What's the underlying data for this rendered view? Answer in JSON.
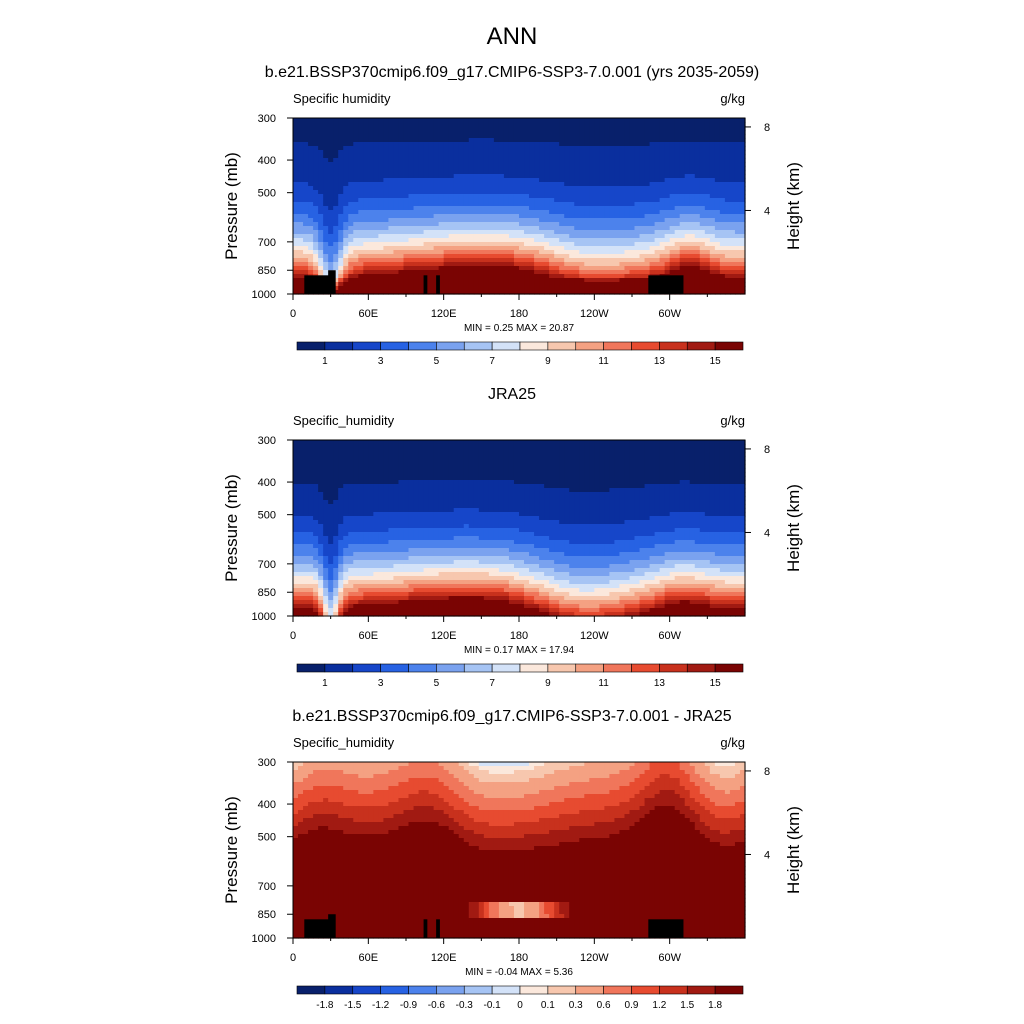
{
  "figure": {
    "title": "ANN",
    "colors": {
      "sequential": [
        "#08206b",
        "#0a2f9e",
        "#1646c9",
        "#2762e3",
        "#4c82ec",
        "#7aa2ef",
        "#a6c4f4",
        "#d3e2f8",
        "#fbe8dc",
        "#f7c7ae",
        "#f4a182",
        "#f0765b",
        "#e74b30",
        "#c8311d",
        "#a11a12",
        "#7a0403"
      ],
      "diverging": [
        "#08206b",
        "#0a2f9e",
        "#1646c9",
        "#2762e3",
        "#4c82ec",
        "#7aa2ef",
        "#a6c4f4",
        "#d3e2f8",
        "#fbe8dc",
        "#f7c7ae",
        "#f4a182",
        "#f0765b",
        "#e74b30",
        "#c8311d",
        "#a11a12",
        "#7a0403"
      ]
    }
  },
  "chart_data": [
    {
      "type": "heatmap",
      "title": "b.e21.BSSP370cmip6.f09_g17.CMIP6-SSP3-7.0.001 (yrs 2035-2059)",
      "left_label": "Specific humidity",
      "units": "g/kg",
      "xlabel": "",
      "ylabel": "Pressure (mb)",
      "ylabel_right": "Height (km)",
      "x_ticks": [
        "0",
        "60E",
        "120E",
        "180",
        "120W",
        "60W"
      ],
      "x_tick_values": [
        0,
        60,
        120,
        180,
        240,
        300
      ],
      "xlim": [
        0,
        360
      ],
      "y_ticks": [
        "300",
        "400",
        "500",
        "700",
        "850",
        "1000"
      ],
      "y_tick_values": [
        300,
        400,
        500,
        700,
        850,
        1000
      ],
      "ylim": [
        1000,
        300
      ],
      "y_scale": "log",
      "right_ticks": [
        "8",
        "4"
      ],
      "right_tick_values": [
        8,
        4
      ],
      "min_label": "MIN =",
      "min_value": "0.25",
      "max_label": "MAX =",
      "max_value": "20.87",
      "colorbar_labels": [
        "1",
        "3",
        "5",
        "7",
        "9",
        "11",
        "13",
        "15"
      ],
      "colorbar_levels": [
        1,
        2,
        3,
        4,
        5,
        6,
        7,
        8,
        9,
        10,
        11,
        12,
        13,
        14,
        15
      ],
      "palette": "sequential",
      "field": "model"
    },
    {
      "type": "heatmap",
      "title": "JRA25",
      "left_label": "Specific_humidity",
      "units": "g/kg",
      "xlabel": "",
      "ylabel": "Pressure (mb)",
      "ylabel_right": "Height (km)",
      "x_ticks": [
        "0",
        "60E",
        "120E",
        "180",
        "120W",
        "60W"
      ],
      "x_tick_values": [
        0,
        60,
        120,
        180,
        240,
        300
      ],
      "xlim": [
        0,
        360
      ],
      "y_ticks": [
        "300",
        "400",
        "500",
        "700",
        "850",
        "1000"
      ],
      "y_tick_values": [
        300,
        400,
        500,
        700,
        850,
        1000
      ],
      "ylim": [
        1000,
        300
      ],
      "y_scale": "log",
      "right_ticks": [
        "8",
        "4"
      ],
      "right_tick_values": [
        8,
        4
      ],
      "min_label": "MIN =",
      "min_value": "0.17",
      "max_label": "MAX =",
      "max_value": "17.94",
      "colorbar_labels": [
        "1",
        "3",
        "5",
        "7",
        "9",
        "11",
        "13",
        "15"
      ],
      "colorbar_levels": [
        1,
        2,
        3,
        4,
        5,
        6,
        7,
        8,
        9,
        10,
        11,
        12,
        13,
        14,
        15
      ],
      "palette": "sequential",
      "field": "obs"
    },
    {
      "type": "heatmap",
      "title": "b.e21.BSSP370cmip6.f09_g17.CMIP6-SSP3-7.0.001 - JRA25",
      "left_label": "Specific_humidity",
      "units": "g/kg",
      "xlabel": "",
      "ylabel": "Pressure (mb)",
      "ylabel_right": "Height (km)",
      "x_ticks": [
        "0",
        "60E",
        "120E",
        "180",
        "120W",
        "60W"
      ],
      "x_tick_values": [
        0,
        60,
        120,
        180,
        240,
        300
      ],
      "xlim": [
        0,
        360
      ],
      "y_ticks": [
        "300",
        "400",
        "500",
        "700",
        "850",
        "1000"
      ],
      "y_tick_values": [
        300,
        400,
        500,
        700,
        850,
        1000
      ],
      "ylim": [
        1000,
        300
      ],
      "y_scale": "log",
      "right_ticks": [
        "8",
        "4"
      ],
      "right_tick_values": [
        8,
        4
      ],
      "min_label": "MIN =",
      "min_value": "-0.04",
      "max_label": "MAX =",
      "max_value": "5.36",
      "colorbar_labels": [
        "-1.8",
        "-1.5",
        "-1.2",
        "-0.9",
        "-0.6",
        "-0.3",
        "-0.1",
        "0",
        "0.1",
        "0.3",
        "0.6",
        "0.9",
        "1.2",
        "1.5",
        "1.8"
      ],
      "colorbar_levels": [
        -1.8,
        -1.5,
        -1.2,
        -0.9,
        -0.6,
        -0.3,
        -0.1,
        0,
        0.1,
        0.3,
        0.6,
        0.9,
        1.2,
        1.5,
        1.8
      ],
      "palette": "diverging",
      "field": "diff"
    }
  ]
}
